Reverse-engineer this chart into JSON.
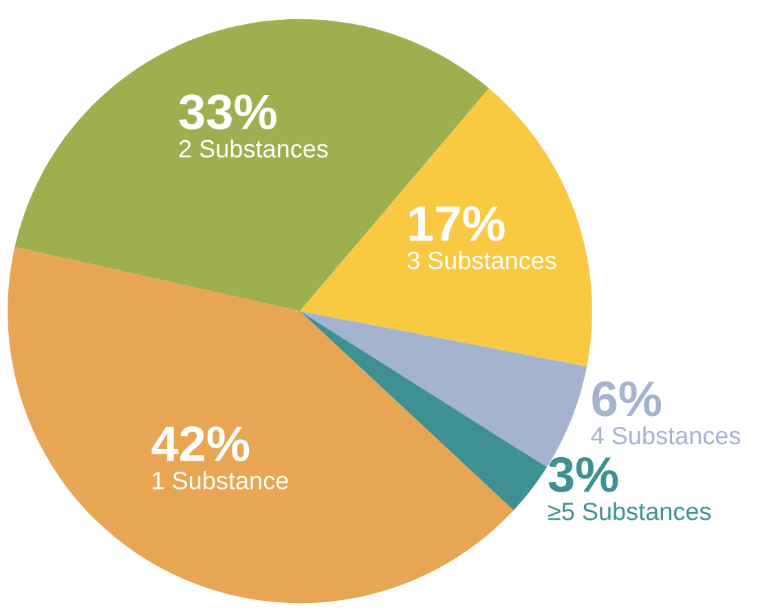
{
  "chart_data": {
    "type": "pie",
    "categories": [
      "1 Substance",
      "2 Substances",
      "3 Substances",
      "4 Substances",
      "≥5 Substances"
    ],
    "values": [
      42,
      33,
      17,
      6,
      3
    ],
    "value_labels": [
      "42%",
      "33%",
      "17%",
      "6%",
      "3%"
    ],
    "colors": [
      "#e8a553",
      "#9daf4e",
      "#f9c941",
      "#a3b3d0",
      "#3f9092"
    ]
  }
}
